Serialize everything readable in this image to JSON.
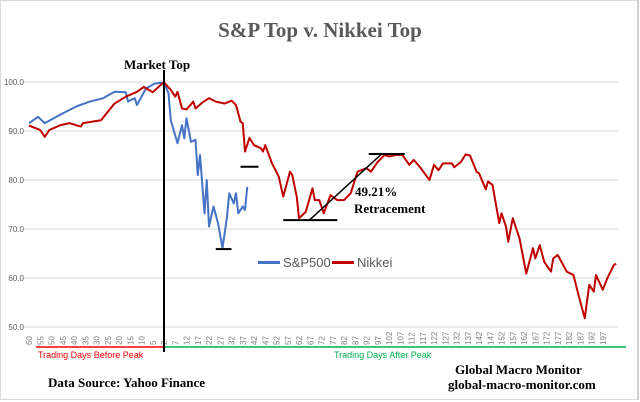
{
  "chart_data": {
    "type": "line",
    "title": "S&P Top v. Nikkei Top",
    "ylim": [
      50,
      100
    ],
    "yticks": [
      "50.0",
      "60.0",
      "70.0",
      "80.0",
      "90.0",
      "100.0"
    ],
    "ytick_values": [
      50,
      60,
      70,
      80,
      90,
      100
    ],
    "xlim": [
      -62,
      202
    ],
    "xticks": [
      -60,
      -55,
      -50,
      -45,
      -40,
      -35,
      -30,
      -25,
      -20,
      -15,
      -10,
      -5,
      0,
      5,
      10,
      15,
      20,
      25,
      30,
      35,
      40,
      45,
      50,
      55,
      60,
      65,
      70,
      75,
      80,
      85,
      90,
      95,
      100,
      105,
      110,
      115,
      120,
      125,
      130,
      135,
      140,
      145,
      150,
      155,
      160,
      165,
      170,
      175,
      180,
      185,
      190,
      195
    ],
    "xtick_labels": [
      "60",
      "55",
      "50",
      "45",
      "40",
      "35",
      "30",
      "25",
      "20",
      "15",
      "10",
      "5",
      "2",
      "7",
      "12",
      "17",
      "22",
      "27",
      "32",
      "37",
      "42",
      "47",
      "52",
      "57",
      "62",
      "67",
      "72",
      "77",
      "82",
      "87",
      "92",
      "97",
      "102",
      "107",
      "112",
      "117",
      "122",
      "127",
      "132",
      "137",
      "142",
      "147",
      "152",
      "157",
      "162",
      "167",
      "172",
      "177",
      "182",
      "187",
      "192",
      "197"
    ],
    "grid": true,
    "legend": "inside-bottom-center",
    "series": [
      {
        "name": "S&P500",
        "color": "#4472c4",
        "points": [
          [
            -60,
            91.6
          ],
          [
            -56,
            92.9
          ],
          [
            -53,
            91.6
          ],
          [
            -49,
            92.6
          ],
          [
            -45,
            93.6
          ],
          [
            -39,
            95.0
          ],
          [
            -33,
            96.0
          ],
          [
            -27,
            96.7
          ],
          [
            -22,
            98.0
          ],
          [
            -17,
            97.9
          ],
          [
            -16,
            96.0
          ],
          [
            -13,
            96.7
          ],
          [
            -12,
            95.3
          ],
          [
            -8,
            98.7
          ],
          [
            -4,
            99.7
          ],
          [
            0,
            99.9
          ],
          [
            2,
            97.7
          ],
          [
            3,
            92.2
          ],
          [
            6,
            87.5
          ],
          [
            8,
            91.2
          ],
          [
            9,
            88.5
          ],
          [
            10,
            92.6
          ],
          [
            12,
            87.8
          ],
          [
            14,
            88.2
          ],
          [
            15,
            81.0
          ],
          [
            16,
            85.1
          ],
          [
            18,
            73.2
          ],
          [
            19,
            80.0
          ],
          [
            20,
            70.5
          ],
          [
            22,
            74.6
          ],
          [
            24,
            71.2
          ],
          [
            26,
            66.1
          ],
          [
            28,
            72.5
          ],
          [
            29,
            77.3
          ],
          [
            31,
            75.2
          ],
          [
            32,
            77.3
          ],
          [
            33,
            73.2
          ],
          [
            35,
            74.6
          ],
          [
            36,
            73.9
          ],
          [
            37,
            78.6
          ]
        ]
      },
      {
        "name": "Nikkei",
        "color": "#c00000",
        "points": [
          [
            -60,
            91.1
          ],
          [
            -55,
            90.2
          ],
          [
            -53,
            88.8
          ],
          [
            -51,
            90.2
          ],
          [
            -46,
            91.2
          ],
          [
            -42,
            91.6
          ],
          [
            -37,
            90.9
          ],
          [
            -36,
            91.6
          ],
          [
            -28,
            92.2
          ],
          [
            -25,
            93.9
          ],
          [
            -22,
            95.6
          ],
          [
            -17,
            97.0
          ],
          [
            -12,
            98.0
          ],
          [
            -9,
            99.0
          ],
          [
            -5,
            97.9
          ],
          [
            -2,
            99.2
          ],
          [
            0,
            99.9
          ],
          [
            3,
            98.4
          ],
          [
            5,
            97.0
          ],
          [
            6,
            98.0
          ],
          [
            8,
            94.6
          ],
          [
            10,
            94.4
          ],
          [
            13,
            96.0
          ],
          [
            14,
            94.6
          ],
          [
            17,
            95.8
          ],
          [
            20,
            96.7
          ],
          [
            23,
            96.0
          ],
          [
            27,
            95.6
          ],
          [
            30,
            96.2
          ],
          [
            32,
            95.3
          ],
          [
            34,
            91.9
          ],
          [
            35,
            91.6
          ],
          [
            36,
            85.8
          ],
          [
            38,
            88.6
          ],
          [
            40,
            87.1
          ],
          [
            43,
            86.5
          ],
          [
            44,
            85.8
          ],
          [
            45,
            87.1
          ],
          [
            48,
            83.4
          ],
          [
            51,
            80.7
          ],
          [
            53,
            76.6
          ],
          [
            56,
            81.7
          ],
          [
            57,
            81.0
          ],
          [
            59,
            76.6
          ],
          [
            60,
            72.2
          ],
          [
            63,
            73.5
          ],
          [
            66,
            78.3
          ],
          [
            67,
            75.9
          ],
          [
            69,
            75.9
          ],
          [
            71,
            73.2
          ],
          [
            74,
            76.9
          ],
          [
            77,
            75.9
          ],
          [
            80,
            75.9
          ],
          [
            83,
            77.3
          ],
          [
            86,
            81.7
          ],
          [
            90,
            82.4
          ],
          [
            92,
            81.7
          ],
          [
            95,
            83.7
          ],
          [
            98,
            85.1
          ],
          [
            100,
            84.8
          ],
          [
            103,
            85.1
          ],
          [
            106,
            85.1
          ],
          [
            109,
            83.1
          ],
          [
            111,
            84.1
          ],
          [
            114,
            82.5
          ],
          [
            118,
            80.0
          ],
          [
            120,
            83.1
          ],
          [
            122,
            82.0
          ],
          [
            124,
            83.4
          ],
          [
            128,
            83.4
          ],
          [
            129,
            82.6
          ],
          [
            132,
            83.7
          ],
          [
            134,
            85.2
          ],
          [
            136,
            85.0
          ],
          [
            139,
            81.6
          ],
          [
            140,
            81.4
          ],
          [
            143,
            78.1
          ],
          [
            144,
            79.7
          ],
          [
            146,
            79.0
          ],
          [
            149,
            71.2
          ],
          [
            150,
            73.2
          ],
          [
            152,
            70.5
          ],
          [
            153,
            67.4
          ],
          [
            155,
            72.2
          ],
          [
            158,
            68.1
          ],
          [
            161,
            60.9
          ],
          [
            164,
            66.1
          ],
          [
            165,
            64.0
          ],
          [
            167,
            66.7
          ],
          [
            169,
            63.3
          ],
          [
            172,
            61.3
          ],
          [
            173,
            64.0
          ],
          [
            175,
            64.7
          ],
          [
            179,
            61.3
          ],
          [
            182,
            60.6
          ],
          [
            184,
            56.9
          ],
          [
            187,
            51.8
          ],
          [
            189,
            58.6
          ],
          [
            191,
            57.2
          ],
          [
            192,
            60.6
          ],
          [
            195,
            57.6
          ],
          [
            197,
            59.9
          ],
          [
            200,
            62.7
          ],
          [
            201,
            62.9
          ]
        ]
      }
    ],
    "annotations": {
      "market_top_label": "Market Top",
      "market_top_x": 0,
      "retracement_pct": "49.21%",
      "retracement_label": "Retracement",
      "sp_low_level": 65.9,
      "nikkei_level": 82.7,
      "retracement_low": 71.8,
      "retracement_high": 85.3
    },
    "before_label": "Trading Days Before Peak",
    "after_label": "Trading Days After Peak",
    "before_color": "#ff0000",
    "after_color": "#00b050"
  },
  "footer": {
    "source": "Data Source:  Yahoo Finance",
    "brand": "Global Macro Monitor",
    "url": "global-macro-monitor.com"
  }
}
